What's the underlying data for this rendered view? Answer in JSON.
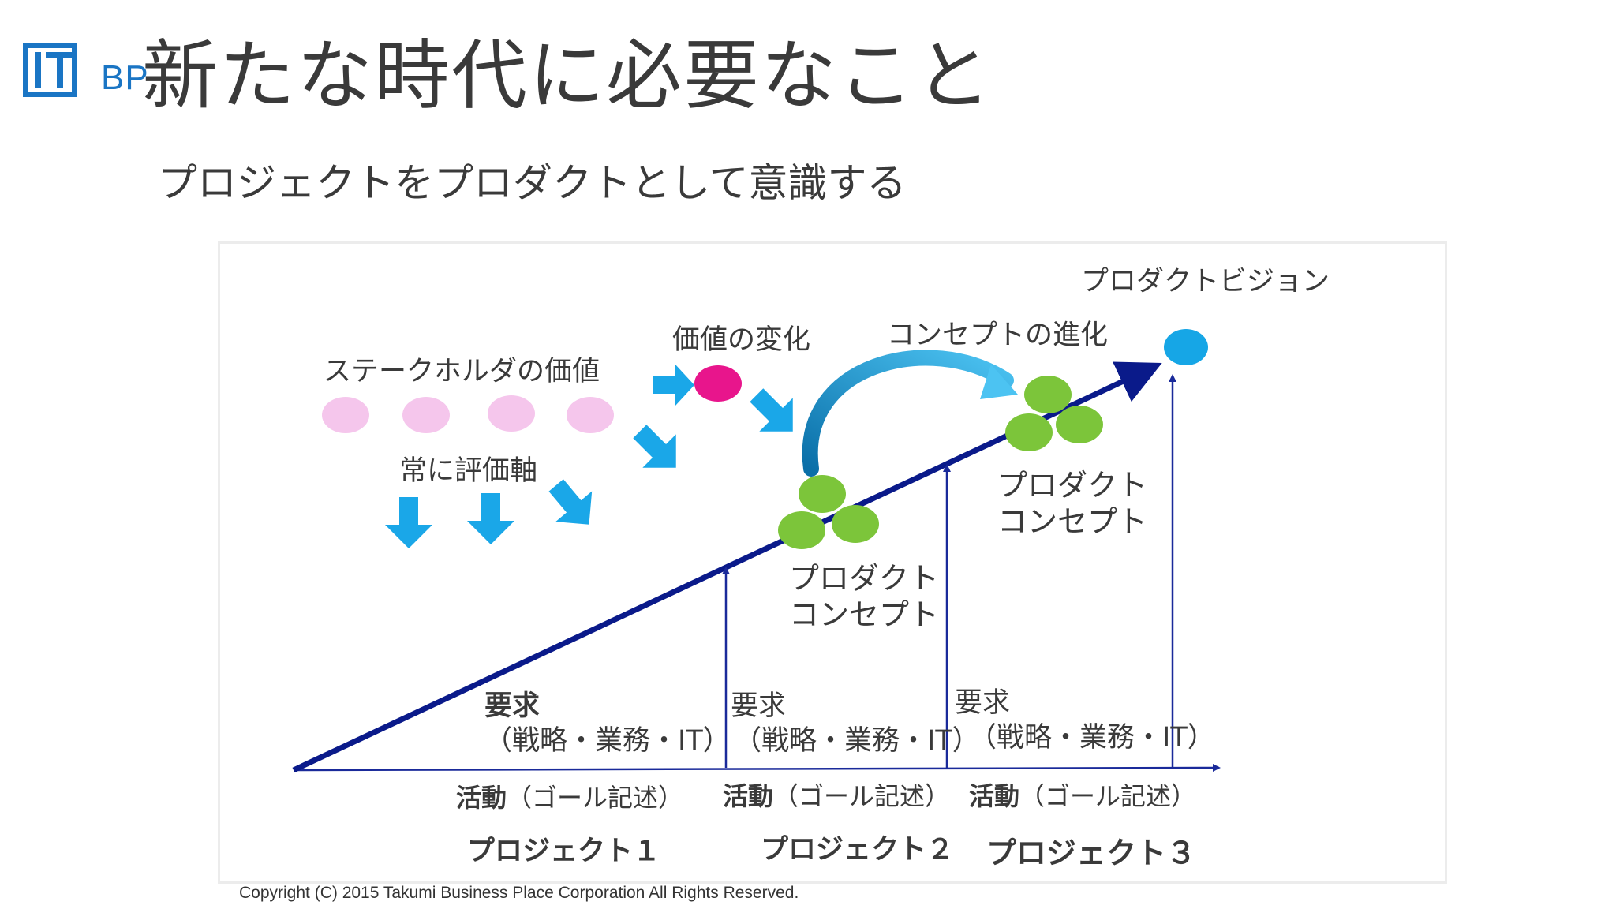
{
  "header": {
    "logo_text": "BP",
    "title": "新たな時代に必要なこと",
    "subtitle": "プロジェクトをプロダクトとして意識する"
  },
  "diagram": {
    "product_vision": "プロダクトビジョン",
    "stakeholder_value": "ステークホルダの価値",
    "value_change": "価値の変化",
    "concept_evolution": "コンセプトの進化",
    "always_axis": "常に評価軸",
    "product_concept_1": {
      "line1": "プロダクト",
      "line2": "コンセプト"
    },
    "product_concept_2": {
      "line1": "プロダクト",
      "line2": "コンセプト"
    },
    "requirements": [
      {
        "head": "要求",
        "body": "（戦略・業務・IT）"
      },
      {
        "head": "要求",
        "body": "（戦略・業務・IT）"
      },
      {
        "head": "要求",
        "body": "（戦略・業務・IT）"
      }
    ],
    "activities": [
      {
        "head": "活動",
        "body": "（ゴール記述）"
      },
      {
        "head": "活動",
        "body": "（ゴール記述）"
      },
      {
        "head": "活動",
        "body": "（ゴール記述）"
      }
    ],
    "projects": [
      "プロジェクト１",
      "プロジェクト２",
      "プロジェクト３"
    ],
    "colors": {
      "trend_arrow": "#0a1a8a",
      "cyan_arrow": "#1aa7e8",
      "pink_dot": "#f5c6ec",
      "magenta_dot": "#e8158c",
      "green_dot": "#7cc53a",
      "vision_dot": "#16a6e6"
    }
  },
  "footer": {
    "copyright": "Copyright (C) 2015 Takumi Business Place Corporation All Rights Reserved."
  }
}
